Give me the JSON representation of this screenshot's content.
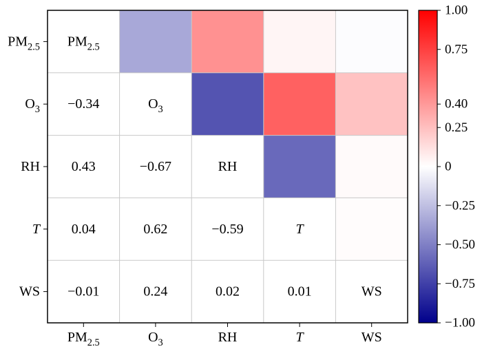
{
  "chart_data": {
    "type": "heatmap",
    "title": "",
    "variables": [
      {
        "base": "PM",
        "sub": "2.5",
        "italic": false
      },
      {
        "base": "O",
        "sub": "3",
        "italic": false
      },
      {
        "base": "RH",
        "sub": "",
        "italic": false
      },
      {
        "base": "T",
        "sub": "",
        "italic": true
      },
      {
        "base": "WS",
        "sub": "",
        "italic": false
      }
    ],
    "cells": [
      {
        "row": 1,
        "col": 0,
        "value": -0.34,
        "label": "−0.34"
      },
      {
        "row": 2,
        "col": 0,
        "value": 0.43,
        "label": "0.43"
      },
      {
        "row": 2,
        "col": 1,
        "value": -0.67,
        "label": "−0.67"
      },
      {
        "row": 3,
        "col": 0,
        "value": 0.04,
        "label": "0.04"
      },
      {
        "row": 3,
        "col": 1,
        "value": 0.62,
        "label": "0.62"
      },
      {
        "row": 3,
        "col": 2,
        "value": -0.59,
        "label": "−0.59"
      },
      {
        "row": 4,
        "col": 0,
        "value": -0.01,
        "label": "−0.01"
      },
      {
        "row": 4,
        "col": 1,
        "value": 0.24,
        "label": "0.24"
      },
      {
        "row": 4,
        "col": 2,
        "value": 0.02,
        "label": "0.02"
      },
      {
        "row": 4,
        "col": 3,
        "value": 0.01,
        "label": "0.01"
      }
    ],
    "colorbar": {
      "range": [
        -1.0,
        1.0
      ],
      "ticks": [
        -1.0,
        -0.75,
        -0.5,
        -0.25,
        0,
        0.25,
        0.4,
        0.75,
        1.0
      ],
      "tick_labels": [
        "−1.00",
        "−0.75",
        "−0.50",
        "−0.25",
        "0",
        "0.25",
        "0.40",
        "0.75",
        "1.00"
      ],
      "colormap": "bwr",
      "low_color": "#00008b",
      "mid_color": "#ffffff",
      "high_color": "#ff0000"
    },
    "grid": true,
    "upper_triangle": "color",
    "lower_triangle": "values",
    "diagonal": "variable-names"
  }
}
